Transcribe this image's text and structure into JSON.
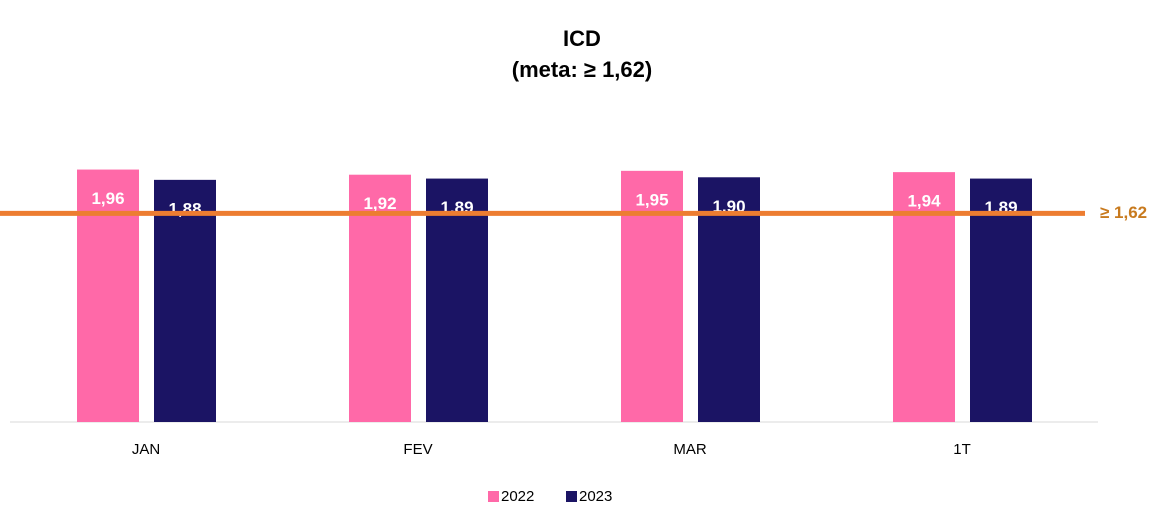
{
  "chart_data": {
    "type": "bar",
    "title": "ICD",
    "subtitle": "(meta: ≥ 1,62)",
    "categories": [
      "JAN",
      "FEV",
      "MAR",
      "1T"
    ],
    "series": [
      {
        "name": "2022",
        "color": "#ff69a8",
        "values": [
          1.96,
          1.92,
          1.95,
          1.94
        ],
        "value_labels": [
          "1,96",
          "1,92",
          "1,95",
          "1,94"
        ]
      },
      {
        "name": "2023",
        "color": "#1b1464",
        "values": [
          1.88,
          1.89,
          1.9,
          1.89
        ],
        "value_labels": [
          "1,88",
          "1,89",
          "1,90",
          "1,89"
        ]
      }
    ],
    "ylim": [
      0,
      2.5
    ],
    "reference_line": {
      "value": 1.62,
      "label": "≥ 1,62",
      "color": "#ed7d31"
    },
    "legend": "bottom"
  }
}
